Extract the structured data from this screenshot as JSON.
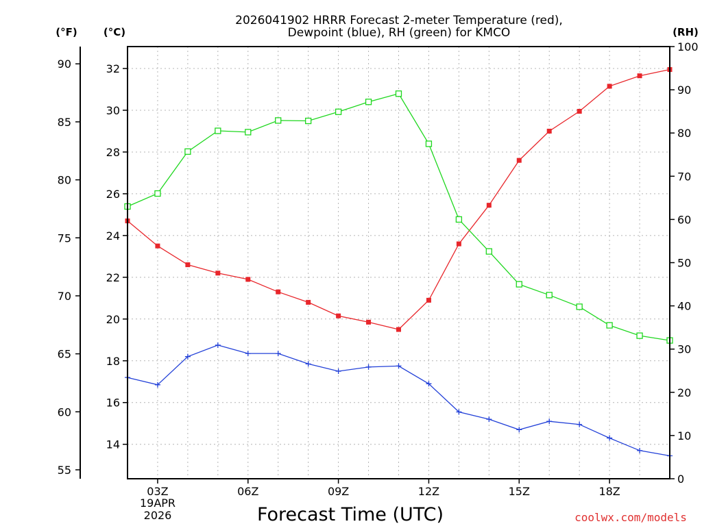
{
  "chart_data": {
    "type": "line",
    "title_line1": "2026041902 HRRR Forecast 2-meter Temperature (red),",
    "title_line2": "Dewpoint (blue), RH (green) for KMCO",
    "xlabel": "Forecast Time (UTC)",
    "credit": "coolwx.com/models",
    "date_line1": "19APR",
    "date_line2": "2026",
    "unit_labels": {
      "fahrenheit": "(°F)",
      "celsius": "(°C)",
      "rh": "(RH)"
    },
    "x": [
      2,
      3,
      4,
      5,
      6,
      7,
      8,
      9,
      10,
      11,
      12,
      13,
      14,
      15,
      16,
      17,
      18,
      19,
      20
    ],
    "xlim": [
      2,
      20
    ],
    "x_ticks": [
      3,
      6,
      9,
      12,
      15,
      18
    ],
    "x_tick_labels": [
      "03Z",
      "06Z",
      "09Z",
      "12Z",
      "15Z",
      "18Z"
    ],
    "temp_axis": {
      "ylim_c": [
        12.35,
        33.05
      ],
      "c_ticks": [
        14,
        16,
        18,
        20,
        22,
        24,
        26,
        28,
        30,
        32
      ],
      "c_tick_labels": [
        "14",
        "16",
        "18",
        "20",
        "22",
        "24",
        "26",
        "28",
        "30",
        "32"
      ],
      "f_ticks": [
        55,
        60,
        65,
        70,
        75,
        80,
        85,
        90
      ],
      "f_tick_labels": [
        "55",
        "60",
        "65",
        "70",
        "75",
        "80",
        "85",
        "90"
      ]
    },
    "rh_axis": {
      "ylim": [
        0,
        100
      ],
      "ticks": [
        0,
        10,
        20,
        30,
        40,
        50,
        60,
        70,
        80,
        90,
        100
      ],
      "tick_labels": [
        "0",
        "10",
        "20",
        "30",
        "40",
        "50",
        "60",
        "70",
        "80",
        "90",
        "100"
      ]
    },
    "series": [
      {
        "name": "Temperature",
        "axis": "celsius",
        "color": "#e8262b",
        "marker": "filled-square",
        "values": [
          24.7,
          23.5,
          22.6,
          22.2,
          21.9,
          21.3,
          20.8,
          20.15,
          19.85,
          19.5,
          20.9,
          23.6,
          25.45,
          27.6,
          29.0,
          29.95,
          31.15,
          31.65,
          31.95
        ]
      },
      {
        "name": "Dewpoint",
        "axis": "celsius",
        "color": "#2240d8",
        "marker": "plus",
        "values": [
          17.2,
          16.85,
          18.2,
          18.75,
          18.35,
          18.35,
          17.85,
          17.5,
          17.7,
          17.75,
          16.9,
          15.55,
          15.2,
          14.7,
          15.1,
          14.95,
          14.3,
          13.7,
          13.45
        ]
      },
      {
        "name": "Relative Humidity",
        "axis": "rh",
        "color": "#1ed71e",
        "marker": "open-square",
        "values": [
          63.0,
          66.0,
          75.7,
          80.5,
          80.2,
          82.9,
          82.8,
          84.9,
          87.2,
          89.1,
          77.5,
          60.0,
          52.6,
          45.0,
          42.5,
          39.8,
          35.5,
          33.1,
          32.0
        ]
      }
    ]
  }
}
